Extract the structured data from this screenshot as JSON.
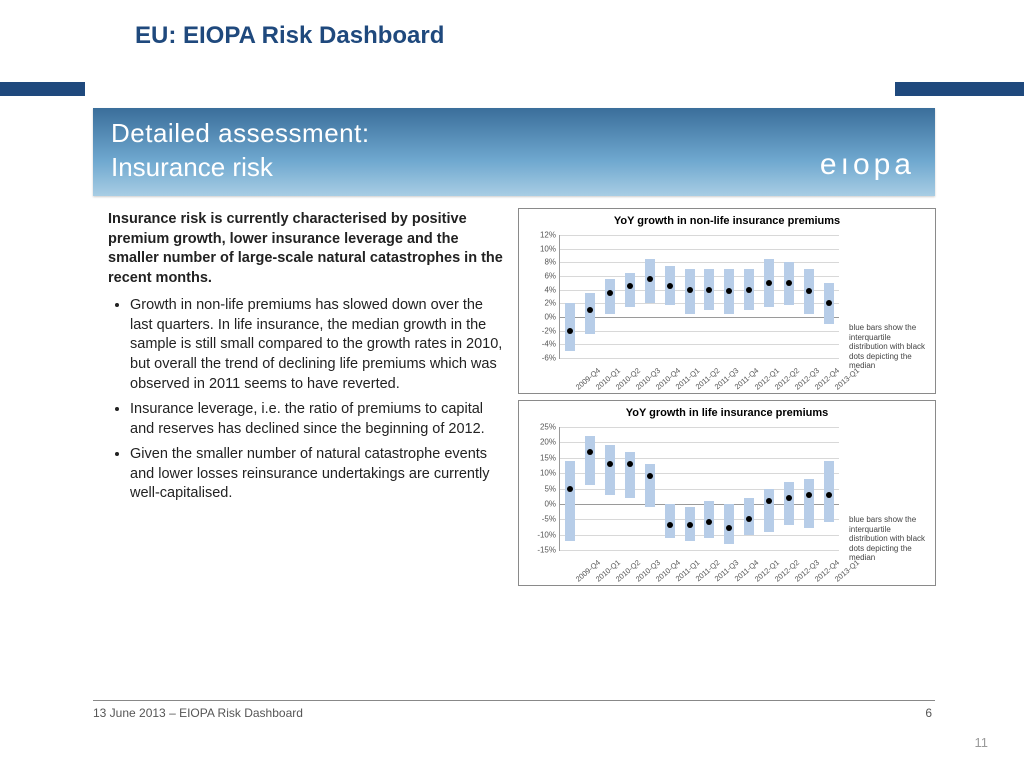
{
  "title": "EU: EIOPA Risk Dashboard",
  "banner": {
    "line1": "Detailed assessment:",
    "line2": "Insurance risk",
    "logo": "eıopa"
  },
  "text": {
    "lead": "Insurance risk is currently characterised by positive premium growth, lower insurance leverage and the smaller number of large-scale natural catastrophes in the recent months.",
    "bullets": [
      "Growth in non-life premiums has slowed down over the last quarters. In life insurance, the median growth in the sample is still small compared to the growth rates in 2010, but overall the trend of declining life premiums which was observed in 2011 seems to have reverted.",
      "Insurance leverage, i.e. the ratio of premiums to capital and reserves has declined since the beginning of 2012.",
      "Given the smaller number of natural catastrophe events and lower losses reinsurance undertakings are currently well-capitalised."
    ]
  },
  "charts": {
    "categories": [
      "2009-Q4",
      "2010-Q1",
      "2010-Q2",
      "2010-Q3",
      "2010-Q4",
      "2011-Q1",
      "2011-Q2",
      "2011-Q3",
      "2011-Q4",
      "2012-Q1",
      "2012-Q2",
      "2012-Q3",
      "2012-Q4",
      "2013-Q1"
    ],
    "bar_color": "#b7cde8",
    "dot_color": "#000000",
    "grid_color": "#d8d8d8",
    "note": "blue bars show the interquartile distribution with black dots depicting the median",
    "nonlife": {
      "title": "YoY growth in non-life insurance premiums",
      "ymin": -6,
      "ymax": 12,
      "ystep": 2,
      "q1": [
        -5.0,
        -2.5,
        0.5,
        1.5,
        2.0,
        1.8,
        0.5,
        1.0,
        0.5,
        1.0,
        1.5,
        1.8,
        0.5,
        -1.0
      ],
      "q3": [
        2.0,
        3.5,
        5.5,
        6.5,
        8.5,
        7.5,
        7.0,
        7.0,
        7.0,
        7.0,
        8.5,
        8.0,
        7.0,
        5.0
      ],
      "median": [
        -2.0,
        1.0,
        3.5,
        4.5,
        5.5,
        4.5,
        4.0,
        4.0,
        3.8,
        4.0,
        5.0,
        5.0,
        3.8,
        2.0
      ]
    },
    "life": {
      "title": "YoY growth in life insurance premiums",
      "ymin": -15,
      "ymax": 25,
      "ystep": 5,
      "q1": [
        -12,
        6,
        3,
        2,
        -1,
        -11,
        -12,
        -11,
        -13,
        -10,
        -9,
        -7,
        -8,
        -6
      ],
      "q3": [
        14,
        22,
        19,
        17,
        13,
        0,
        -1,
        1,
        0,
        2,
        5,
        7,
        8,
        14
      ],
      "median": [
        5,
        17,
        13,
        13,
        9,
        -7,
        -7,
        -6,
        -8,
        -5,
        1,
        2,
        3,
        3
      ]
    }
  },
  "footer": {
    "left": "13 June 2013 – EIOPA Risk Dashboard",
    "inner_page": "6",
    "outer_page": "11"
  }
}
